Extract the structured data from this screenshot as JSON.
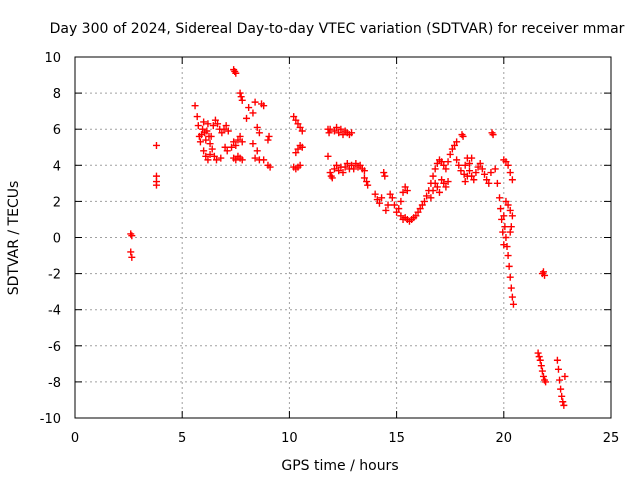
{
  "chart_data": {
    "type": "scatter",
    "title": "Day 300 of 2024, Sidereal Day-to-day VTEC variation (SDTVAR) for receiver mmar",
    "xlabel": "GPS time / hours",
    "ylabel": "SDTVAR / TECUs",
    "xlim": [
      0,
      25
    ],
    "ylim": [
      -10,
      10
    ],
    "xticks": [
      "0",
      "5",
      "10",
      "15",
      "20",
      "25"
    ],
    "yticks": [
      "10",
      "8",
      "6",
      "4",
      "2",
      "0",
      "-2",
      "-4",
      "-6",
      "-8",
      "-10"
    ],
    "grid": true,
    "marker": "+",
    "series": [
      {
        "name": "SDTVAR",
        "color": "#ff0000",
        "points": [
          [
            2.6,
            0.2
          ],
          [
            2.65,
            0.1
          ],
          [
            2.6,
            -0.8
          ],
          [
            2.65,
            -1.1
          ],
          [
            3.8,
            5.1
          ],
          [
            3.8,
            3.4
          ],
          [
            3.8,
            3.1
          ],
          [
            3.8,
            2.9
          ],
          [
            5.6,
            7.3
          ],
          [
            5.7,
            6.7
          ],
          [
            5.75,
            6.2
          ],
          [
            5.8,
            5.6
          ],
          [
            5.85,
            5.3
          ],
          [
            5.9,
            5.7
          ],
          [
            5.95,
            6.0
          ],
          [
            6.0,
            6.4
          ],
          [
            6.05,
            5.8
          ],
          [
            6.1,
            5.4
          ],
          [
            6.15,
            5.9
          ],
          [
            6.2,
            6.3
          ],
          [
            6.25,
            5.6
          ],
          [
            6.3,
            5.2
          ],
          [
            6.35,
            5.6
          ],
          [
            6.45,
            6.2
          ],
          [
            6.55,
            6.5
          ],
          [
            6.65,
            6.3
          ],
          [
            6.75,
            6.0
          ],
          [
            6.85,
            5.8
          ],
          [
            6.95,
            6.0
          ],
          [
            7.05,
            6.2
          ],
          [
            7.15,
            5.9
          ],
          [
            6.0,
            4.8
          ],
          [
            6.1,
            4.5
          ],
          [
            6.2,
            4.3
          ],
          [
            6.3,
            4.6
          ],
          [
            6.4,
            4.9
          ],
          [
            6.5,
            4.5
          ],
          [
            6.6,
            4.3
          ],
          [
            6.8,
            4.4
          ],
          [
            7.0,
            5.0
          ],
          [
            7.1,
            4.8
          ],
          [
            7.3,
            5.0
          ],
          [
            7.4,
            5.3
          ],
          [
            7.5,
            5.1
          ],
          [
            7.6,
            5.4
          ],
          [
            7.7,
            5.6
          ],
          [
            7.8,
            5.3
          ],
          [
            7.4,
            4.4
          ],
          [
            7.5,
            4.3
          ],
          [
            7.6,
            4.5
          ],
          [
            7.7,
            4.4
          ],
          [
            7.8,
            4.3
          ],
          [
            7.4,
            9.3
          ],
          [
            7.45,
            9.2
          ],
          [
            7.5,
            9.1
          ],
          [
            7.7,
            8.0
          ],
          [
            7.75,
            7.8
          ],
          [
            7.8,
            7.6
          ],
          [
            8.0,
            6.6
          ],
          [
            8.1,
            7.2
          ],
          [
            8.3,
            6.9
          ],
          [
            8.4,
            7.5
          ],
          [
            8.5,
            6.1
          ],
          [
            8.6,
            5.8
          ],
          [
            8.7,
            7.4
          ],
          [
            8.8,
            7.3
          ],
          [
            8.3,
            5.2
          ],
          [
            8.5,
            4.8
          ],
          [
            8.4,
            4.4
          ],
          [
            8.6,
            4.3
          ],
          [
            8.8,
            4.3
          ],
          [
            9.0,
            5.4
          ],
          [
            9.05,
            5.6
          ],
          [
            9.0,
            4.0
          ],
          [
            9.1,
            3.9
          ],
          [
            10.2,
            6.7
          ],
          [
            10.3,
            6.5
          ],
          [
            10.4,
            6.3
          ],
          [
            10.5,
            6.1
          ],
          [
            10.6,
            5.9
          ],
          [
            10.3,
            4.7
          ],
          [
            10.4,
            4.9
          ],
          [
            10.5,
            5.1
          ],
          [
            10.6,
            5.0
          ],
          [
            10.2,
            3.9
          ],
          [
            10.3,
            3.8
          ],
          [
            10.4,
            3.9
          ],
          [
            10.5,
            4.0
          ],
          [
            11.8,
            6.0
          ],
          [
            11.85,
            5.8
          ],
          [
            11.9,
            6.0
          ],
          [
            12.1,
            5.9
          ],
          [
            12.2,
            6.1
          ],
          [
            12.3,
            5.8
          ],
          [
            12.4,
            6.0
          ],
          [
            12.5,
            5.7
          ],
          [
            12.6,
            5.9
          ],
          [
            12.7,
            5.8
          ],
          [
            12.8,
            5.7
          ],
          [
            12.9,
            5.8
          ],
          [
            11.8,
            4.5
          ],
          [
            11.9,
            3.6
          ],
          [
            11.95,
            3.4
          ],
          [
            12.0,
            3.3
          ],
          [
            12.1,
            3.8
          ],
          [
            12.2,
            4.0
          ],
          [
            12.3,
            3.7
          ],
          [
            12.4,
            3.9
          ],
          [
            12.5,
            3.6
          ],
          [
            12.6,
            3.9
          ],
          [
            12.7,
            4.1
          ],
          [
            12.8,
            3.8
          ],
          [
            12.9,
            4.0
          ],
          [
            13.0,
            3.8
          ],
          [
            13.1,
            4.1
          ],
          [
            13.2,
            3.9
          ],
          [
            13.3,
            4.0
          ],
          [
            13.4,
            3.8
          ],
          [
            13.5,
            3.7
          ],
          [
            13.5,
            3.3
          ],
          [
            13.6,
            3.1
          ],
          [
            13.65,
            2.9
          ],
          [
            14.0,
            2.4
          ],
          [
            14.1,
            2.1
          ],
          [
            14.2,
            1.9
          ],
          [
            14.3,
            2.2
          ],
          [
            14.4,
            3.6
          ],
          [
            14.45,
            3.4
          ],
          [
            14.5,
            1.5
          ],
          [
            14.6,
            1.8
          ],
          [
            14.7,
            2.4
          ],
          [
            14.8,
            2.2
          ],
          [
            14.9,
            1.8
          ],
          [
            15.0,
            1.4
          ],
          [
            15.1,
            1.6
          ],
          [
            15.2,
            2.0
          ],
          [
            15.3,
            2.5
          ],
          [
            15.4,
            2.8
          ],
          [
            15.5,
            2.6
          ],
          [
            15.2,
            1.2
          ],
          [
            15.3,
            1.0
          ],
          [
            15.4,
            1.1
          ],
          [
            15.5,
            1.0
          ],
          [
            15.6,
            0.9
          ],
          [
            15.7,
            1.0
          ],
          [
            15.8,
            1.1
          ],
          [
            15.9,
            1.2
          ],
          [
            16.0,
            1.4
          ],
          [
            16.1,
            1.6
          ],
          [
            16.2,
            1.8
          ],
          [
            16.3,
            2.0
          ],
          [
            16.4,
            2.3
          ],
          [
            16.5,
            2.6
          ],
          [
            16.6,
            3.0
          ],
          [
            16.7,
            3.4
          ],
          [
            16.8,
            3.8
          ],
          [
            16.9,
            4.1
          ],
          [
            17.0,
            4.3
          ],
          [
            16.6,
            2.2
          ],
          [
            16.7,
            2.6
          ],
          [
            16.8,
            3.0
          ],
          [
            16.9,
            2.8
          ],
          [
            17.0,
            2.5
          ],
          [
            17.1,
            4.2
          ],
          [
            17.2,
            4.0
          ],
          [
            17.3,
            3.8
          ],
          [
            17.4,
            4.2
          ],
          [
            17.5,
            4.6
          ],
          [
            17.6,
            4.9
          ],
          [
            17.7,
            5.1
          ],
          [
            17.8,
            5.3
          ],
          [
            17.1,
            3.2
          ],
          [
            17.2,
            3.0
          ],
          [
            17.3,
            2.8
          ],
          [
            17.4,
            3.1
          ],
          [
            17.8,
            4.3
          ],
          [
            17.9,
            4.0
          ],
          [
            18.0,
            3.7
          ],
          [
            18.05,
            5.7
          ],
          [
            18.1,
            5.6
          ],
          [
            18.15,
            3.5
          ],
          [
            18.2,
            3.1
          ],
          [
            18.3,
            3.4
          ],
          [
            18.4,
            3.7
          ],
          [
            18.5,
            3.4
          ],
          [
            18.6,
            3.2
          ],
          [
            18.7,
            3.6
          ],
          [
            18.8,
            3.9
          ],
          [
            18.9,
            4.1
          ],
          [
            18.2,
            4.0
          ],
          [
            18.3,
            4.4
          ],
          [
            18.4,
            4.1
          ],
          [
            18.5,
            4.4
          ],
          [
            19.0,
            3.8
          ],
          [
            19.1,
            3.5
          ],
          [
            19.2,
            3.2
          ],
          [
            19.3,
            3.0
          ],
          [
            19.4,
            3.6
          ],
          [
            19.45,
            5.8
          ],
          [
            19.5,
            5.7
          ],
          [
            19.6,
            3.8
          ],
          [
            19.7,
            3.0
          ],
          [
            19.8,
            2.2
          ],
          [
            19.85,
            1.6
          ],
          [
            19.9,
            1.0
          ],
          [
            19.95,
            0.3
          ],
          [
            20.0,
            -0.4
          ],
          [
            20.0,
            4.3
          ],
          [
            20.1,
            4.2
          ],
          [
            20.2,
            4.0
          ],
          [
            20.3,
            3.6
          ],
          [
            20.4,
            3.2
          ],
          [
            20.0,
            1.2
          ],
          [
            20.05,
            0.6
          ],
          [
            20.1,
            0.0
          ],
          [
            20.15,
            -0.5
          ],
          [
            20.2,
            -1.0
          ],
          [
            20.25,
            -1.6
          ],
          [
            20.3,
            -2.2
          ],
          [
            20.35,
            -2.8
          ],
          [
            20.4,
            -3.3
          ],
          [
            20.45,
            -3.7
          ],
          [
            20.1,
            2.0
          ],
          [
            20.2,
            1.8
          ],
          [
            20.3,
            1.5
          ],
          [
            20.4,
            1.2
          ],
          [
            20.35,
            0.6
          ],
          [
            20.3,
            0.3
          ],
          [
            21.8,
            -2.0
          ],
          [
            21.85,
            -1.9
          ],
          [
            21.9,
            -2.1
          ],
          [
            21.6,
            -6.4
          ],
          [
            21.65,
            -6.6
          ],
          [
            21.7,
            -6.8
          ],
          [
            21.75,
            -7.1
          ],
          [
            21.8,
            -7.4
          ],
          [
            21.85,
            -7.7
          ],
          [
            21.9,
            -7.9
          ],
          [
            21.95,
            -8.0
          ],
          [
            22.5,
            -6.8
          ],
          [
            22.55,
            -7.3
          ],
          [
            22.6,
            -7.9
          ],
          [
            22.65,
            -8.4
          ],
          [
            22.7,
            -8.8
          ],
          [
            22.75,
            -9.1
          ],
          [
            22.8,
            -9.3
          ],
          [
            22.85,
            -7.7
          ]
        ]
      }
    ]
  }
}
